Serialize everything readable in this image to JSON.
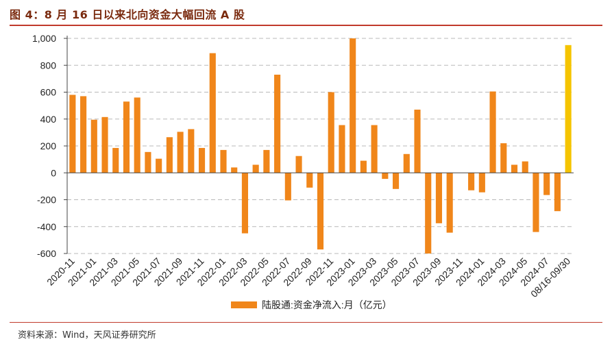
{
  "figure": {
    "title": "图 4：8 月 16 日以来北向资金大幅回流 A 股",
    "source": "资料来源：Wind，天风证券研究所"
  },
  "colors": {
    "bar": "#f0861a",
    "highlight_bar": "#f5c400",
    "title": "#7a2a0e",
    "rule": "#c0392b",
    "gridline": "#b8b8b8"
  },
  "chart_data": {
    "type": "bar",
    "x": [
      "2020-11",
      "2020-12",
      "2021-01",
      "2021-02",
      "2021-03",
      "2021-04",
      "2021-05",
      "2021-06",
      "2021-07",
      "2021-08",
      "2021-09",
      "2021-10",
      "2021-11",
      "2021-12",
      "2022-01",
      "2022-02",
      "2022-03",
      "2022-04",
      "2022-05",
      "2022-06",
      "2022-07",
      "2022-08",
      "2022-09",
      "2022-10",
      "2022-11",
      "2022-12",
      "2023-01",
      "2023-02",
      "2023-03",
      "2023-04",
      "2023-05",
      "2023-06",
      "2023-07",
      "2023-08",
      "2023-09",
      "2023-10",
      "2023-11",
      "2023-12",
      "2024-01",
      "2024-02",
      "2024-03",
      "2024-04",
      "2024-05",
      "2024-06",
      "2024-07",
      "2024-08",
      "08/16-09/30"
    ],
    "tick_labels": [
      "2020-11",
      "2021-01",
      "2021-03",
      "2021-05",
      "2021-07",
      "2021-09",
      "2021-11",
      "2022-01",
      "2022-03",
      "2022-05",
      "2022-07",
      "2022-09",
      "2022-11",
      "2023-01",
      "2023-03",
      "2023-05",
      "2023-07",
      "2023-09",
      "2023-11",
      "2024-01",
      "2024-03",
      "2024-05",
      "2024-07",
      "08/16-09/30"
    ],
    "series": [
      {
        "name": "陆股通:资金净流入:月（亿元）",
        "values": [
          580,
          570,
          395,
          415,
          185,
          530,
          560,
          155,
          105,
          265,
          305,
          325,
          185,
          890,
          170,
          40,
          -450,
          60,
          170,
          730,
          -205,
          125,
          -110,
          -570,
          600,
          355,
          1000,
          90,
          355,
          -45,
          -120,
          140,
          470,
          -600,
          -375,
          -445,
          0,
          -130,
          -145,
          605,
          220,
          60,
          85,
          -440,
          -165,
          -285,
          950
        ]
      }
    ],
    "highlight": [
      "08/16-09/30"
    ],
    "ylim": [
      -600,
      1000
    ],
    "yticks": [
      1000,
      800,
      600,
      400,
      200,
      0,
      -200,
      -400,
      -600
    ],
    "ytick_labels": [
      "1,000",
      "800",
      "600",
      "400",
      "200",
      "0",
      "-200",
      "-400",
      "-600"
    ],
    "grid": true,
    "legend_position": "bottom"
  }
}
